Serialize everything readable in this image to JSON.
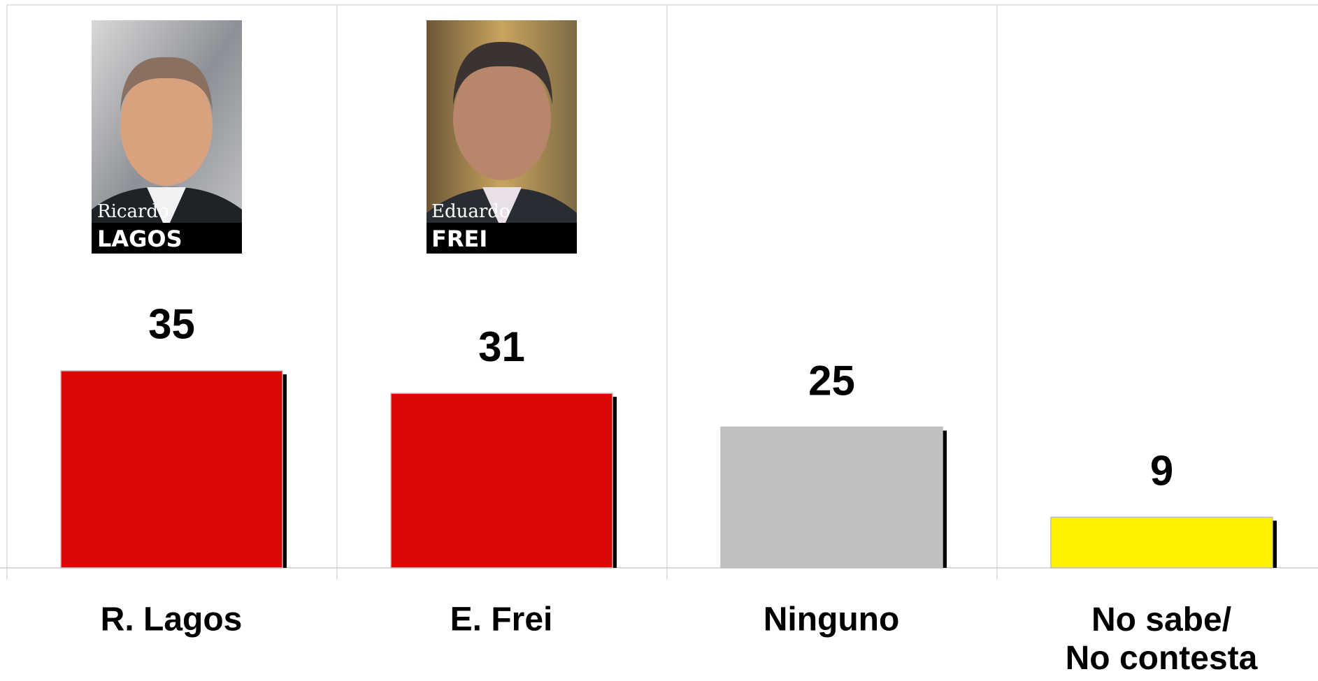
{
  "chart_data": {
    "type": "bar",
    "categories": [
      "R. Lagos",
      "E. Frei",
      "Ninguno",
      "No sabe/\nNo contesta"
    ],
    "values": [
      35,
      31,
      25,
      9
    ],
    "colors": [
      "#dd0806",
      "#dd0806",
      "#c0c0c0",
      "#fff200"
    ],
    "ylim": [
      0,
      100
    ],
    "grid": true,
    "photo_labels": [
      {
        "first": "Ricardo",
        "last": "LAGOS"
      },
      {
        "first": "Eduardo",
        "last": "FREI"
      }
    ]
  }
}
